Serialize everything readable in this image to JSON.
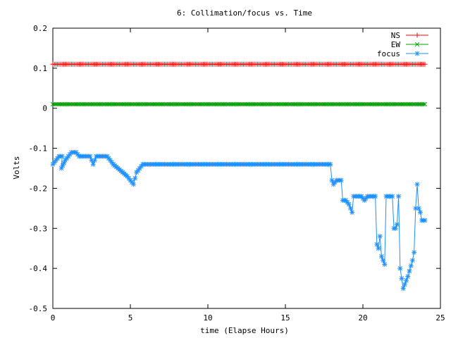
{
  "chart_data": {
    "type": "line",
    "title": "6: Collimation/focus vs. Time",
    "xlabel": "time (Elapse Hours)",
    "ylabel": "Volts",
    "xlim": [
      0,
      25
    ],
    "ylim": [
      -0.5,
      0.2
    ],
    "x_ticks": [
      0,
      5,
      10,
      15,
      20,
      25
    ],
    "x_tick_labels": [
      "0",
      "5",
      "10",
      "15",
      "20",
      "25"
    ],
    "y_ticks": [
      0.2,
      0.1,
      0,
      -0.1,
      -0.2,
      -0.3,
      -0.4,
      -0.5
    ],
    "y_tick_labels": [
      "0.2",
      "0.1",
      "0",
      "-0.1",
      "-0.2",
      "-0.3",
      "-0.4",
      "-0.5"
    ],
    "grid": false,
    "legend_position": "top-right",
    "series": [
      {
        "name": "NS",
        "color": "#ff0000",
        "marker": "plus",
        "points": [
          [
            0,
            0.11
          ],
          [
            24,
            0.11
          ]
        ]
      },
      {
        "name": "EW",
        "color": "#00a000",
        "marker": "cross",
        "points": [
          [
            0,
            0.01
          ],
          [
            24,
            0.01
          ]
        ]
      },
      {
        "name": "focus",
        "color": "#1e90ff",
        "marker": "star",
        "points": [
          [
            0.0,
            -0.14
          ],
          [
            0.2,
            -0.13
          ],
          [
            0.4,
            -0.12
          ],
          [
            0.6,
            -0.12
          ],
          [
            0.55,
            -0.15
          ],
          [
            0.8,
            -0.13
          ],
          [
            1.0,
            -0.12
          ],
          [
            1.2,
            -0.11
          ],
          [
            1.5,
            -0.11
          ],
          [
            1.7,
            -0.12
          ],
          [
            2.0,
            -0.12
          ],
          [
            2.4,
            -0.12
          ],
          [
            2.6,
            -0.14
          ],
          [
            2.8,
            -0.12
          ],
          [
            3.2,
            -0.12
          ],
          [
            3.5,
            -0.12
          ],
          [
            3.7,
            -0.13
          ],
          [
            3.9,
            -0.14
          ],
          [
            4.2,
            -0.15
          ],
          [
            4.5,
            -0.16
          ],
          [
            4.8,
            -0.17
          ],
          [
            5.0,
            -0.18
          ],
          [
            5.2,
            -0.19
          ],
          [
            5.4,
            -0.16
          ],
          [
            5.6,
            -0.15
          ],
          [
            5.8,
            -0.14
          ],
          [
            6.5,
            -0.14
          ],
          [
            8.0,
            -0.14
          ],
          [
            10.0,
            -0.14
          ],
          [
            12.0,
            -0.14
          ],
          [
            14.0,
            -0.14
          ],
          [
            16.0,
            -0.14
          ],
          [
            17.9,
            -0.14
          ],
          [
            18.0,
            -0.18
          ],
          [
            18.1,
            -0.19
          ],
          [
            18.3,
            -0.18
          ],
          [
            18.6,
            -0.18
          ],
          [
            18.7,
            -0.23
          ],
          [
            18.9,
            -0.23
          ],
          [
            19.1,
            -0.24
          ],
          [
            19.3,
            -0.26
          ],
          [
            19.4,
            -0.22
          ],
          [
            19.7,
            -0.22
          ],
          [
            19.9,
            -0.22
          ],
          [
            20.1,
            -0.23
          ],
          [
            20.3,
            -0.22
          ],
          [
            20.5,
            -0.22
          ],
          [
            20.6,
            -0.22
          ],
          [
            20.8,
            -0.22
          ],
          [
            20.9,
            -0.34
          ],
          [
            21.0,
            -0.35
          ],
          [
            21.1,
            -0.32
          ],
          [
            21.2,
            -0.37
          ],
          [
            21.4,
            -0.39
          ],
          [
            21.5,
            -0.22
          ],
          [
            21.9,
            -0.22
          ],
          [
            22.0,
            -0.3
          ],
          [
            22.1,
            -0.3
          ],
          [
            22.2,
            -0.29
          ],
          [
            22.3,
            -0.22
          ],
          [
            22.4,
            -0.4
          ],
          [
            22.6,
            -0.45
          ],
          [
            22.7,
            -0.44
          ],
          [
            22.9,
            -0.42
          ],
          [
            23.2,
            -0.38
          ],
          [
            23.3,
            -0.36
          ],
          [
            23.4,
            -0.25
          ],
          [
            23.5,
            -0.19
          ],
          [
            23.6,
            -0.25
          ],
          [
            23.7,
            -0.26
          ],
          [
            23.8,
            -0.28
          ],
          [
            24.0,
            -0.28
          ]
        ]
      }
    ]
  }
}
